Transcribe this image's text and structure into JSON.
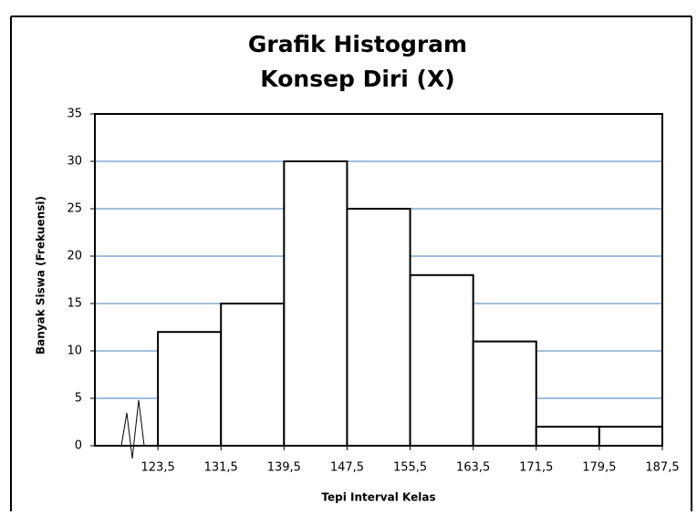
{
  "chart_data": {
    "type": "histogram",
    "title": [
      "Grafik Histogram",
      "Konsep Diri (X)"
    ],
    "x_label": "Tepi Interval Kelas",
    "y_label": "Banyak Siswa (Frekuensi)",
    "bins": [
      123.5,
      131.5,
      139.5,
      147.5,
      155.5,
      163.5,
      171.5,
      179.5,
      187.5
    ],
    "values": [
      12,
      15,
      30,
      25,
      18,
      11,
      2,
      2
    ],
    "color": "#ffffff",
    "xlim": [
      115.5,
      187.5
    ],
    "xticks": [
      {
        "value": 123.5,
        "label": "123,5"
      },
      {
        "value": 131.5,
        "label": "131,5"
      },
      {
        "value": 139.5,
        "label": "139,5"
      },
      {
        "value": 147.5,
        "label": "147,5"
      },
      {
        "value": 155.5,
        "label": "155,5"
      },
      {
        "value": 163.5,
        "label": "163,5"
      },
      {
        "value": 171.5,
        "label": "171,5"
      },
      {
        "value": 179.5,
        "label": "179,5"
      },
      {
        "value": 187.5,
        "label": "187,5"
      }
    ],
    "ylim": [
      0,
      35
    ],
    "yticks": [
      0,
      5,
      10,
      15,
      20,
      25,
      30,
      35
    ],
    "grid": true,
    "grid_color": "#4a7ebb"
  }
}
